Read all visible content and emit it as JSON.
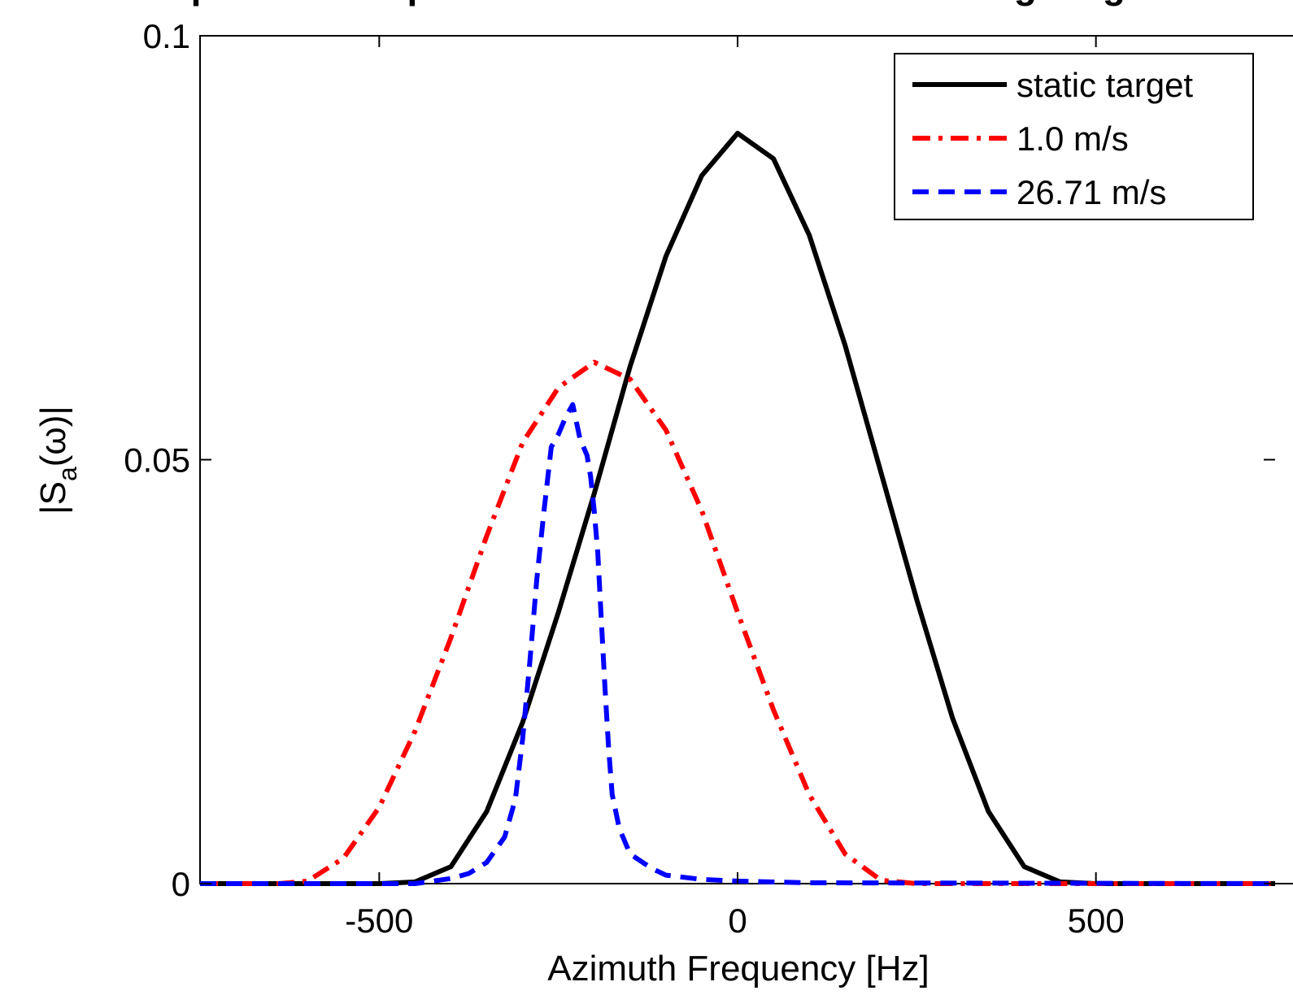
{
  "chart_data": {
    "type": "line",
    "title": "Spectral Comparison Between Static and Moving Targets",
    "xlabel": "Azimuth Frequency [Hz]",
    "ylabel": {
      "main": "|S",
      "sub": "a",
      "tail": "(ω)|"
    },
    "xlim": [
      -750,
      750
    ],
    "ylim": [
      0,
      0.1
    ],
    "xticks": [
      -500,
      0,
      500
    ],
    "xtick_labels": [
      "-500",
      "0",
      "500"
    ],
    "yticks": [
      0,
      0.05,
      0.1
    ],
    "ytick_labels": [
      "0",
      "0.05",
      "0.1"
    ],
    "grid": false,
    "legend_position": "top-right",
    "series": [
      {
        "name": "static target",
        "color": "#000000",
        "style": "solid",
        "x": [
          -750,
          -600,
          -500,
          -450,
          -400,
          -350,
          -300,
          -250,
          -200,
          -150,
          -100,
          -50,
          0,
          50,
          100,
          150,
          200,
          250,
          300,
          350,
          400,
          450,
          500,
          750
        ],
        "y": [
          0,
          0,
          0,
          0.0002,
          0.002,
          0.0085,
          0.019,
          0.032,
          0.046,
          0.061,
          0.074,
          0.0835,
          0.0885,
          0.0855,
          0.0765,
          0.0635,
          0.0485,
          0.0335,
          0.0195,
          0.0085,
          0.002,
          0.0002,
          0,
          0
        ]
      },
      {
        "name": "1.0 m/s",
        "color": "#ff0000",
        "style": "dashdot",
        "x": [
          -750,
          -640,
          -600,
          -550,
          -500,
          -450,
          -400,
          -350,
          -300,
          -250,
          -200,
          -150,
          -100,
          -50,
          0,
          50,
          100,
          150,
          200,
          250,
          750
        ],
        "y": [
          0,
          0,
          0.0003,
          0.003,
          0.009,
          0.018,
          0.029,
          0.041,
          0.052,
          0.0585,
          0.0615,
          0.0595,
          0.0535,
          0.044,
          0.032,
          0.0205,
          0.0105,
          0.0035,
          0.0004,
          0,
          0
        ]
      },
      {
        "name": "26.71 m/s",
        "color": "#0000ff",
        "style": "dashed",
        "x": [
          -750,
          -450,
          -400,
          -375,
          -350,
          -325,
          -310,
          -300,
          -290,
          -280,
          -270,
          -260,
          -250,
          -240,
          -230,
          -220,
          -210,
          -205,
          -200,
          -195,
          -190,
          -185,
          -180,
          -175,
          -165,
          -150,
          -120,
          -100,
          -50,
          0,
          100,
          750
        ],
        "y": [
          0,
          0,
          0.0006,
          0.0012,
          0.0025,
          0.0055,
          0.01,
          0.017,
          0.026,
          0.036,
          0.044,
          0.0515,
          0.053,
          0.055,
          0.0565,
          0.0525,
          0.0505,
          0.048,
          0.044,
          0.039,
          0.031,
          0.023,
          0.016,
          0.0105,
          0.0065,
          0.0035,
          0.0018,
          0.001,
          0.0005,
          0.0003,
          0.0001,
          0
        ]
      }
    ]
  }
}
